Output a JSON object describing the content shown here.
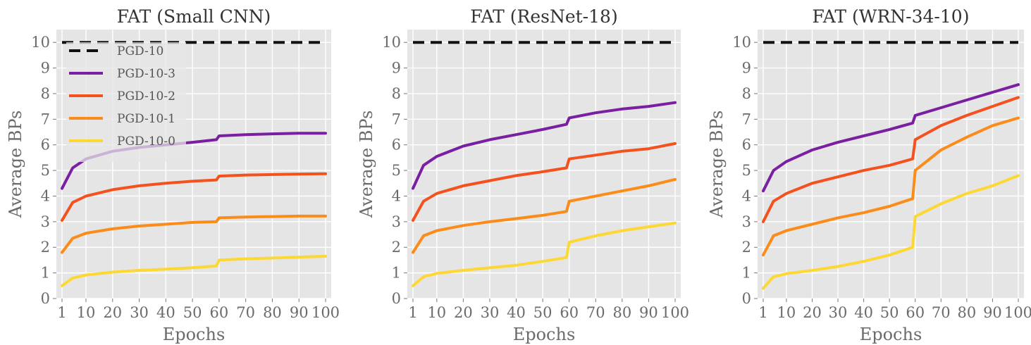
{
  "chart_data": [
    {
      "type": "line",
      "title": "FAT (Small CNN)",
      "xlabel": "Epochs",
      "ylabel": "Average BPs",
      "xticks": [
        "1",
        "10",
        "20",
        "30",
        "40",
        "50",
        "60",
        "70",
        "80",
        "90",
        "100"
      ],
      "yticks": [
        "0",
        "1",
        "2",
        "3",
        "4",
        "5",
        "6",
        "7",
        "8",
        "9",
        "10"
      ],
      "xlim": [
        1,
        100
      ],
      "ylim": [
        0,
        10.5
      ],
      "grid": true,
      "legend_placement": "upper-left",
      "x": [
        1,
        5,
        10,
        20,
        30,
        40,
        50,
        59,
        60,
        70,
        80,
        90,
        100
      ],
      "series": [
        {
          "name": "PGD-10",
          "color": "#111111",
          "dashed": true,
          "values": [
            10,
            10,
            10,
            10,
            10,
            10,
            10,
            10,
            10,
            10,
            10,
            10,
            10
          ]
        },
        {
          "name": "PGD-10-3",
          "color": "#7a1fa2",
          "dashed": false,
          "values": [
            4.3,
            5.1,
            5.45,
            5.75,
            5.9,
            6.0,
            6.1,
            6.2,
            6.35,
            6.4,
            6.43,
            6.45,
            6.45
          ]
        },
        {
          "name": "PGD-10-2",
          "color": "#f4511e",
          "dashed": false,
          "values": [
            3.05,
            3.75,
            4.0,
            4.25,
            4.4,
            4.5,
            4.58,
            4.63,
            4.78,
            4.82,
            4.84,
            4.86,
            4.87
          ]
        },
        {
          "name": "PGD-10-1",
          "color": "#fb8c1a",
          "dashed": false,
          "values": [
            1.8,
            2.35,
            2.55,
            2.72,
            2.83,
            2.9,
            2.97,
            3.0,
            3.15,
            3.18,
            3.2,
            3.22,
            3.22
          ]
        },
        {
          "name": "PGD-10-0",
          "color": "#fdd835",
          "dashed": false,
          "values": [
            0.5,
            0.8,
            0.92,
            1.03,
            1.1,
            1.15,
            1.2,
            1.27,
            1.5,
            1.55,
            1.58,
            1.62,
            1.65
          ]
        }
      ]
    },
    {
      "type": "line",
      "title": "FAT (ResNet-18)",
      "xlabel": "Epochs",
      "ylabel": "Average BPs",
      "xticks": [
        "1",
        "10",
        "20",
        "30",
        "40",
        "50",
        "60",
        "70",
        "80",
        "90",
        "100"
      ],
      "yticks": [
        "0",
        "1",
        "2",
        "3",
        "4",
        "5",
        "6",
        "7",
        "8",
        "9",
        "10"
      ],
      "xlim": [
        1,
        100
      ],
      "ylim": [
        0,
        10.5
      ],
      "grid": true,
      "x": [
        1,
        5,
        10,
        20,
        30,
        40,
        50,
        59,
        60,
        70,
        80,
        90,
        100
      ],
      "series": [
        {
          "name": "PGD-10",
          "color": "#111111",
          "dashed": true,
          "values": [
            10,
            10,
            10,
            10,
            10,
            10,
            10,
            10,
            10,
            10,
            10,
            10,
            10
          ]
        },
        {
          "name": "PGD-10-3",
          "color": "#7a1fa2",
          "dashed": false,
          "values": [
            4.3,
            5.2,
            5.55,
            5.95,
            6.2,
            6.4,
            6.6,
            6.8,
            7.05,
            7.25,
            7.4,
            7.5,
            7.65
          ]
        },
        {
          "name": "PGD-10-2",
          "color": "#f4511e",
          "dashed": false,
          "values": [
            3.05,
            3.8,
            4.1,
            4.4,
            4.6,
            4.8,
            4.95,
            5.1,
            5.45,
            5.6,
            5.75,
            5.85,
            6.05
          ]
        },
        {
          "name": "PGD-10-1",
          "color": "#fb8c1a",
          "dashed": false,
          "values": [
            1.8,
            2.45,
            2.65,
            2.85,
            3.0,
            3.12,
            3.25,
            3.4,
            3.8,
            4.0,
            4.2,
            4.4,
            4.65
          ]
        },
        {
          "name": "PGD-10-0",
          "color": "#fdd835",
          "dashed": false,
          "values": [
            0.5,
            0.85,
            0.98,
            1.1,
            1.2,
            1.3,
            1.45,
            1.6,
            2.2,
            2.45,
            2.65,
            2.8,
            2.95
          ]
        }
      ]
    },
    {
      "type": "line",
      "title": "FAT (WRN-34-10)",
      "xlabel": "Epochs",
      "ylabel": "Average BPs",
      "xticks": [
        "1",
        "10",
        "20",
        "30",
        "40",
        "50",
        "60",
        "70",
        "80",
        "90",
        "100"
      ],
      "yticks": [
        "0",
        "1",
        "2",
        "3",
        "4",
        "5",
        "6",
        "7",
        "8",
        "9",
        "10"
      ],
      "xlim": [
        1,
        100
      ],
      "ylim": [
        0,
        10.5
      ],
      "grid": true,
      "x": [
        1,
        5,
        10,
        20,
        30,
        40,
        50,
        59,
        60,
        70,
        80,
        90,
        100
      ],
      "series": [
        {
          "name": "PGD-10",
          "color": "#111111",
          "dashed": true,
          "values": [
            10,
            10,
            10,
            10,
            10,
            10,
            10,
            10,
            10,
            10,
            10,
            10,
            10
          ]
        },
        {
          "name": "PGD-10-3",
          "color": "#7a1fa2",
          "dashed": false,
          "values": [
            4.2,
            5.0,
            5.35,
            5.8,
            6.1,
            6.35,
            6.6,
            6.85,
            7.15,
            7.45,
            7.75,
            8.05,
            8.35
          ]
        },
        {
          "name": "PGD-10-2",
          "color": "#f4511e",
          "dashed": false,
          "values": [
            3.0,
            3.8,
            4.1,
            4.5,
            4.75,
            5.0,
            5.2,
            5.45,
            6.2,
            6.75,
            7.15,
            7.5,
            7.85
          ]
        },
        {
          "name": "PGD-10-1",
          "color": "#fb8c1a",
          "dashed": false,
          "values": [
            1.7,
            2.45,
            2.65,
            2.9,
            3.15,
            3.35,
            3.6,
            3.9,
            5.0,
            5.8,
            6.3,
            6.75,
            7.05
          ]
        },
        {
          "name": "PGD-10-0",
          "color": "#fdd835",
          "dashed": false,
          "values": [
            0.4,
            0.85,
            0.97,
            1.1,
            1.25,
            1.45,
            1.7,
            2.0,
            3.2,
            3.7,
            4.1,
            4.4,
            4.8
          ]
        }
      ]
    }
  ]
}
